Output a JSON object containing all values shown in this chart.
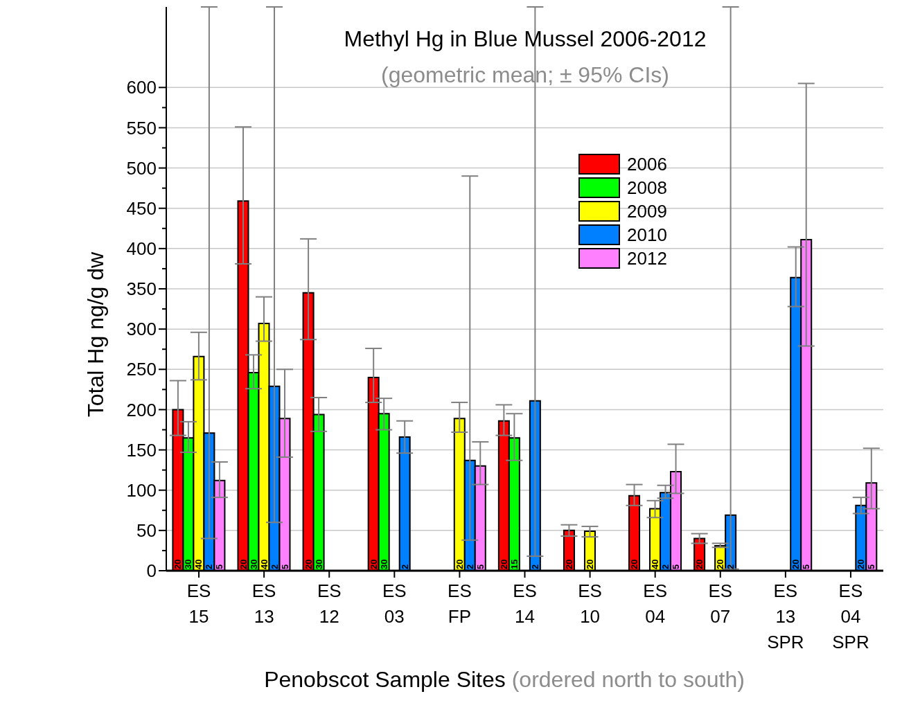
{
  "chart_data": {
    "type": "bar",
    "title": "Methyl Hg in Blue Mussel 2006-2012",
    "subtitle": "(geometric mean; ± 95% CIs)",
    "xlabel": "Penobscot Sample Sites (ordered north to south)",
    "ylabel": "Total Hg ng/g dw",
    "categories": [
      "ES 15",
      "ES 13",
      "ES 12",
      "ES 03",
      "ES FP",
      "ES 14",
      "ES 10",
      "ES 04",
      "ES 07",
      "ES 13 SPR",
      "ES 04 SPR"
    ],
    "series": [
      {
        "name": "2006",
        "color": "#ff0000",
        "values": [
          200,
          459,
          345,
          240,
          null,
          186,
          50,
          93,
          40,
          null,
          null
        ],
        "errors": [
          [
            168,
            236
          ],
          [
            381,
            551
          ],
          [
            287,
            412
          ],
          [
            209,
            276
          ],
          null,
          [
            168,
            206
          ],
          [
            43,
            57
          ],
          [
            81,
            107
          ],
          [
            34,
            46
          ],
          null,
          null
        ]
      },
      {
        "name": "2008",
        "color": "#00ff00",
        "values": [
          165,
          246,
          194,
          195,
          null,
          165,
          null,
          null,
          null,
          null,
          null
        ],
        "errors": [
          [
            147,
            185
          ],
          [
            226,
            268
          ],
          [
            173,
            215
          ],
          [
            175,
            214
          ],
          null,
          [
            137,
            195
          ],
          null,
          null,
          null,
          null,
          null
        ]
      },
      {
        "name": "2009",
        "color": "#ffff00",
        "values": [
          266,
          307,
          null,
          null,
          189,
          null,
          49,
          77,
          31,
          null,
          null
        ],
        "errors": [
          [
            237,
            296
          ],
          [
            285,
            340
          ],
          null,
          null,
          [
            172,
            209
          ],
          null,
          [
            42,
            55
          ],
          [
            66,
            87
          ],
          [
            29,
            34
          ],
          null,
          null
        ]
      },
      {
        "name": "2010",
        "color": "#0080ff",
        "values": [
          171,
          229,
          null,
          166,
          137,
          211,
          null,
          97,
          69,
          364,
          81
        ],
        "errors": [
          [
            40,
            700
          ],
          [
            60,
            700
          ],
          null,
          [
            146,
            186
          ],
          [
            38,
            490
          ],
          [
            18,
            700
          ],
          null,
          [
            90,
            106
          ],
          [
            2,
            700
          ],
          [
            328,
            402
          ],
          [
            71,
            91
          ]
        ]
      },
      {
        "name": "2012",
        "color": "#ff80ff",
        "values": [
          112,
          189,
          null,
          null,
          130,
          null,
          null,
          123,
          null,
          411,
          109
        ],
        "errors": [
          [
            91,
            135
          ],
          [
            141,
            250
          ],
          null,
          null,
          [
            107,
            160
          ],
          null,
          null,
          [
            96,
            157
          ],
          null,
          [
            279,
            605
          ],
          [
            77,
            152
          ]
        ]
      }
    ],
    "annotations": [
      "20",
      "30",
      "40",
      "2",
      "5",
      "20",
      "30",
      "40",
      "2",
      "5",
      "20",
      "30",
      "20",
      "30",
      "2",
      "20",
      "2",
      "5",
      "20",
      "15",
      "2",
      "20",
      "20",
      "20",
      "40",
      "2",
      "5",
      "20",
      "20",
      "2",
      "20",
      "5",
      "20",
      "5"
    ],
    "ylim": [
      0,
      700
    ],
    "yticks": [
      0,
      {
        "value": 25,
        "label": null
      },
      50,
      {
        "value": 75,
        "label": null
      },
      100,
      {
        "value": 125,
        "label": null
      },
      150,
      {
        "value": 175,
        "label": null
      },
      200,
      {
        "value": 225,
        "label": null
      },
      250,
      {
        "value": 275,
        "label": null
      },
      300,
      {
        "value": 325,
        "label": null
      },
      350,
      {
        "value": 375,
        "label": null
      },
      400,
      {
        "value": 425,
        "label": null
      },
      450,
      {
        "value": 475,
        "label": null
      },
      500,
      {
        "value": 525,
        "label": null
      },
      550,
      {
        "value": 575,
        "label": null
      },
      600
    ],
    "grid": "y",
    "legend": "top right"
  }
}
